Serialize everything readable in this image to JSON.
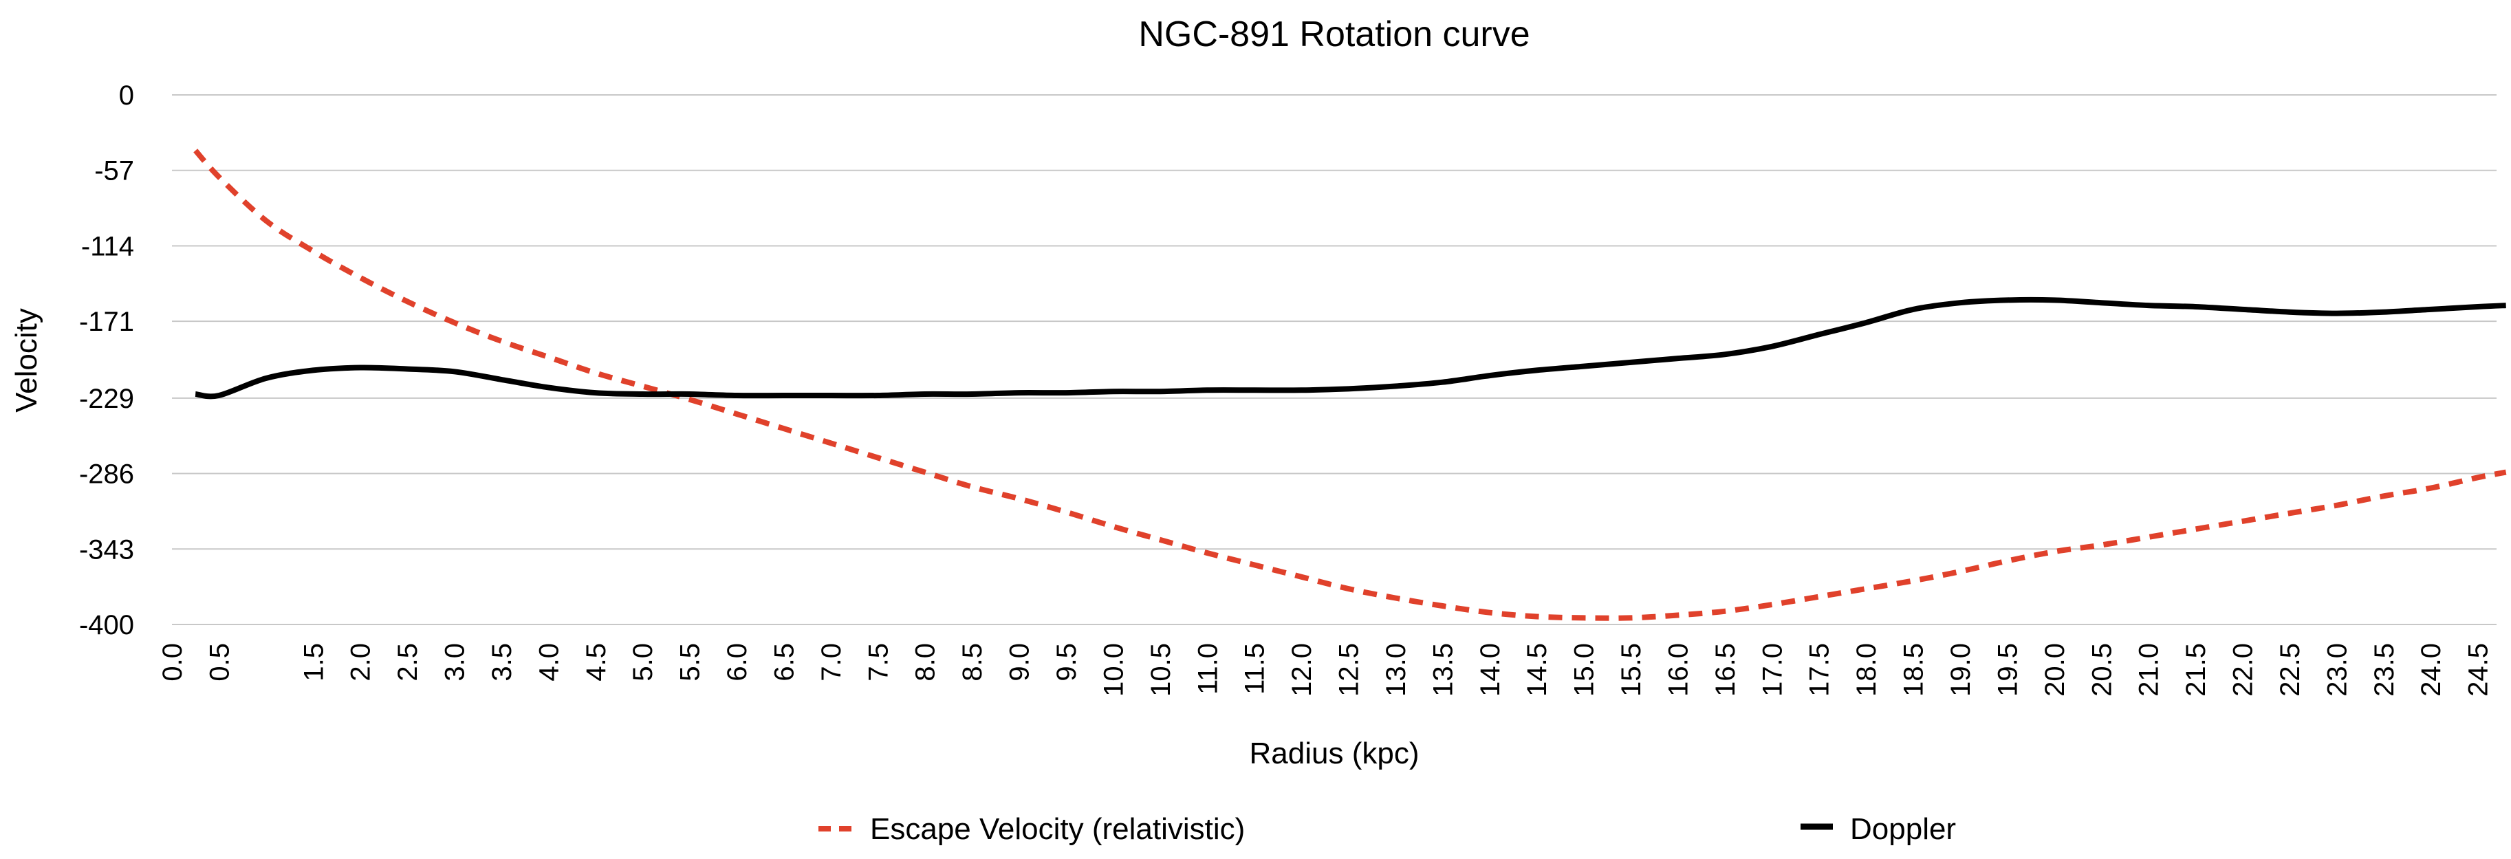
{
  "chart_data": {
    "type": "line",
    "title": "NGC-891 Rotation curve",
    "xlabel": "Radius (kpc)",
    "ylabel": "Velocity",
    "ylim": [
      -400,
      0
    ],
    "yticks": [
      "0",
      "-57",
      "-114",
      "-171",
      "-229",
      "-286",
      "-343",
      "-400"
    ],
    "ytick_values": [
      0,
      -57,
      -114,
      -171,
      -229,
      -286,
      -343,
      -400
    ],
    "x_categories": [
      "0.0",
      "0.5",
      "1.5",
      "2.0",
      "2.5",
      "3.0",
      "3.5",
      "4.0",
      "4.5",
      "5.0",
      "5.5",
      "6.0",
      "6.5",
      "7.0",
      "7.5",
      "8.0",
      "8.5",
      "9.0",
      "9.5",
      "10.0",
      "10.5",
      "11.0",
      "11.5",
      "12.0",
      "12.5",
      "13.0",
      "13.5",
      "14.0",
      "14.5",
      "15.0",
      "15.5",
      "16.0",
      "16.5",
      "17.0",
      "17.5",
      "18.0",
      "18.5",
      "19.0",
      "19.5",
      "20.0",
      "20.5",
      "21.0",
      "21.5",
      "22.0",
      "22.5",
      "23.0",
      "23.5",
      "24.0",
      "24.5"
    ],
    "xlim": [
      0,
      24.7
    ],
    "grid": true,
    "legend_position": "bottom",
    "series": [
      {
        "name": "Escape Velocity (relativistic)",
        "color": "#e0412b",
        "style": "dashed",
        "points": [
          [
            0.25,
            -42
          ],
          [
            0.5,
            -62
          ],
          [
            1.0,
            -95
          ],
          [
            1.5,
            -118
          ],
          [
            2.0,
            -138
          ],
          [
            2.5,
            -156
          ],
          [
            3.0,
            -172
          ],
          [
            3.5,
            -186
          ],
          [
            4.0,
            -198
          ],
          [
            4.5,
            -210
          ],
          [
            5.0,
            -220
          ],
          [
            5.5,
            -230
          ],
          [
            6.0,
            -241
          ],
          [
            6.5,
            -252
          ],
          [
            7.0,
            -263
          ],
          [
            7.5,
            -274
          ],
          [
            8.0,
            -285
          ],
          [
            8.5,
            -296
          ],
          [
            9.0,
            -305
          ],
          [
            9.5,
            -315
          ],
          [
            10.0,
            -326
          ],
          [
            10.5,
            -336
          ],
          [
            11.0,
            -346
          ],
          [
            11.5,
            -355
          ],
          [
            12.0,
            -364
          ],
          [
            12.5,
            -373
          ],
          [
            13.0,
            -380
          ],
          [
            13.5,
            -386
          ],
          [
            14.0,
            -391
          ],
          [
            14.5,
            -394
          ],
          [
            15.0,
            -395
          ],
          [
            15.5,
            -395
          ],
          [
            16.0,
            -393
          ],
          [
            16.5,
            -390
          ],
          [
            17.0,
            -385
          ],
          [
            17.5,
            -379
          ],
          [
            18.0,
            -373
          ],
          [
            18.5,
            -367
          ],
          [
            19.0,
            -360
          ],
          [
            19.5,
            -352
          ],
          [
            20.0,
            -345
          ],
          [
            20.5,
            -340
          ],
          [
            21.0,
            -334
          ],
          [
            21.5,
            -328
          ],
          [
            22.0,
            -322
          ],
          [
            22.5,
            -316
          ],
          [
            23.0,
            -310
          ],
          [
            23.5,
            -303
          ],
          [
            24.0,
            -297
          ],
          [
            24.5,
            -289
          ],
          [
            24.8,
            -285
          ]
        ]
      },
      {
        "name": "Doppler",
        "color": "#000000",
        "style": "solid",
        "points": [
          [
            0.25,
            -226
          ],
          [
            0.5,
            -227
          ],
          [
            1.0,
            -214
          ],
          [
            1.5,
            -208
          ],
          [
            2.0,
            -206
          ],
          [
            2.5,
            -207
          ],
          [
            3.0,
            -209
          ],
          [
            3.5,
            -215
          ],
          [
            4.0,
            -221
          ],
          [
            4.5,
            -225
          ],
          [
            5.0,
            -226
          ],
          [
            5.5,
            -226
          ],
          [
            6.0,
            -227
          ],
          [
            6.5,
            -227
          ],
          [
            7.0,
            -227
          ],
          [
            7.5,
            -227
          ],
          [
            8.0,
            -226
          ],
          [
            8.5,
            -226
          ],
          [
            9.0,
            -225
          ],
          [
            9.5,
            -225
          ],
          [
            10.0,
            -224
          ],
          [
            10.5,
            -224
          ],
          [
            11.0,
            -223
          ],
          [
            11.5,
            -223
          ],
          [
            12.0,
            -223
          ],
          [
            12.5,
            -222
          ],
          [
            13.0,
            -220
          ],
          [
            13.5,
            -217
          ],
          [
            14.0,
            -212
          ],
          [
            14.5,
            -208
          ],
          [
            15.0,
            -205
          ],
          [
            15.5,
            -202
          ],
          [
            16.0,
            -199
          ],
          [
            16.5,
            -196
          ],
          [
            17.0,
            -190
          ],
          [
            17.5,
            -181
          ],
          [
            18.0,
            -172
          ],
          [
            18.5,
            -162
          ],
          [
            19.0,
            -157
          ],
          [
            19.5,
            -155
          ],
          [
            20.0,
            -155
          ],
          [
            20.5,
            -157
          ],
          [
            21.0,
            -159
          ],
          [
            21.5,
            -160
          ],
          [
            22.0,
            -162
          ],
          [
            22.5,
            -164
          ],
          [
            23.0,
            -165
          ],
          [
            23.5,
            -164
          ],
          [
            24.0,
            -162
          ],
          [
            24.5,
            -160
          ],
          [
            24.8,
            -159
          ]
        ]
      }
    ]
  }
}
